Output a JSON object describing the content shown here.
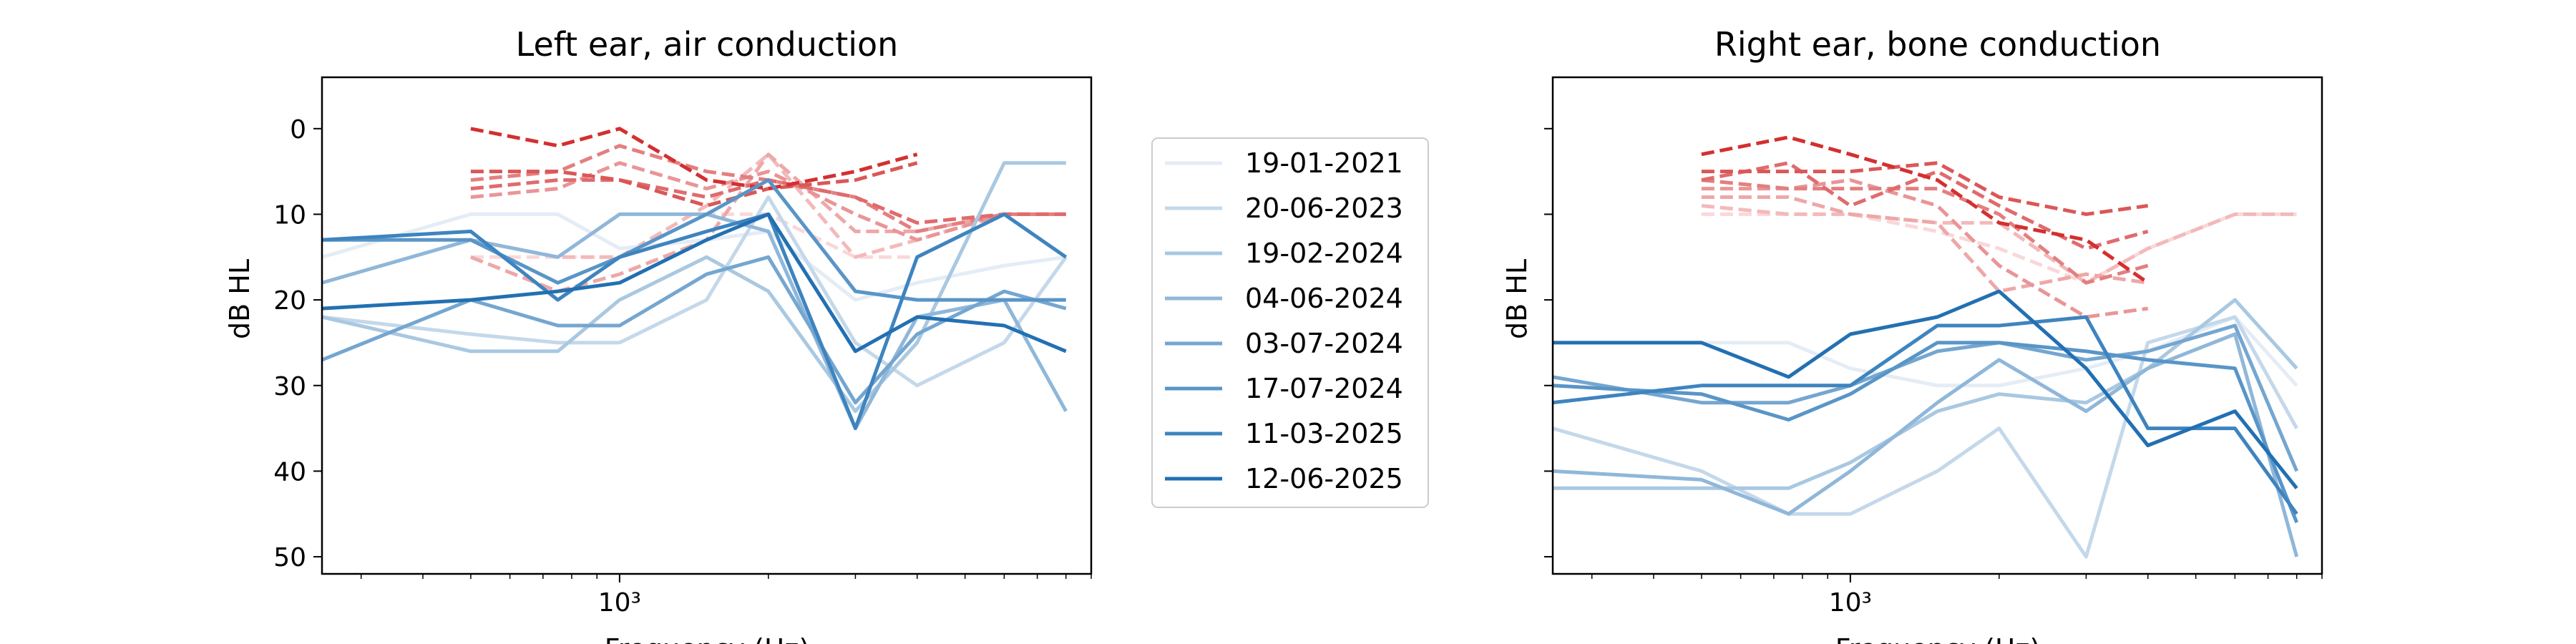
{
  "legend": {
    "placement": "center",
    "entries": [
      "19-01-2021",
      "20-06-2023",
      "19-02-2024",
      "04-06-2024",
      "03-07-2024",
      "17-07-2024",
      "11-03-2025",
      "12-06-2025"
    ]
  },
  "colors": {
    "blue_series": [
      "#e4ecf5",
      "#c4d8ea",
      "#a9c8e1",
      "#8fb7d9",
      "#74a6d0",
      "#5995c7",
      "#3e84bf",
      "#2270b2"
    ],
    "red_series": [
      "#f9d8d9",
      "#f3b9ba",
      "#eea7a8",
      "#e99596",
      "#e37f80",
      "#df6b6d",
      "#da5758",
      "#d42f30"
    ]
  },
  "chart_data": [
    {
      "type": "line",
      "title": "Left ear, air conduction",
      "xlabel": "Frequency (Hz)",
      "ylabel": "dB HL",
      "xscale": "log",
      "xlim": [
        250,
        9000
      ],
      "ylim": [
        52,
        -6
      ],
      "yticks": [
        0,
        10,
        20,
        30,
        40,
        50
      ],
      "xticks": [
        {
          "value": 1000,
          "label": "10³"
        }
      ],
      "grid": false,
      "series": [
        {
          "name": "19-01-2021",
          "x": [
            250,
            500,
            750,
            1000,
            1500,
            2000,
            3000,
            4000,
            6000,
            8000
          ],
          "values": [
            15,
            10,
            10,
            14,
            13,
            12,
            20,
            18,
            16,
            15
          ]
        },
        {
          "name": "20-06-2023",
          "x": [
            250,
            500,
            750,
            1000,
            1500,
            2000,
            3000,
            4000,
            6000,
            8000
          ],
          "values": [
            22,
            24,
            25,
            25,
            20,
            8,
            25,
            30,
            25,
            15
          ]
        },
        {
          "name": "19-02-2024",
          "x": [
            250,
            500,
            750,
            1000,
            1500,
            2000,
            3000,
            4000,
            6000,
            8000
          ],
          "values": [
            22,
            26,
            26,
            20,
            15,
            19,
            33,
            25,
            4,
            4
          ]
        },
        {
          "name": "04-06-2024",
          "x": [
            250,
            500,
            750,
            1000,
            1500,
            2000,
            3000,
            4000,
            6000,
            8000
          ],
          "values": [
            18,
            13,
            15,
            10,
            10,
            12,
            35,
            22,
            20,
            33
          ]
        },
        {
          "name": "03-07-2024",
          "x": [
            250,
            500,
            750,
            1000,
            1500,
            2000,
            3000,
            4000,
            6000,
            8000
          ],
          "values": [
            27,
            20,
            23,
            23,
            17,
            15,
            32,
            24,
            19,
            21
          ]
        },
        {
          "name": "17-07-2024",
          "x": [
            250,
            500,
            750,
            1000,
            1500,
            2000,
            3000,
            4000,
            6000,
            8000
          ],
          "values": [
            13,
            13,
            18,
            15,
            10,
            6,
            19,
            20,
            20,
            20
          ]
        },
        {
          "name": "11-03-2025",
          "x": [
            250,
            500,
            750,
            1000,
            1500,
            2000,
            3000,
            4000,
            6000,
            8000
          ],
          "values": [
            13,
            12,
            20,
            15,
            12,
            10,
            35,
            15,
            10,
            15
          ]
        },
        {
          "name": "12-06-2025",
          "x": [
            250,
            500,
            750,
            1000,
            1500,
            2000,
            3000,
            4000,
            6000,
            8000
          ],
          "values": [
            21,
            20,
            19,
            18,
            13,
            10,
            26,
            22,
            23,
            26
          ]
        }
      ],
      "dashed_series": [
        {
          "x": [
            500,
            750,
            1000,
            1500,
            2000,
            3000,
            4000,
            6000,
            8000
          ],
          "values": [
            15,
            15,
            15,
            10,
            10,
            15,
            15,
            10,
            10
          ]
        },
        {
          "x": [
            500,
            750,
            1000,
            1500,
            2000,
            3000,
            4000,
            6000,
            8000
          ],
          "values": [
            13,
            15,
            15,
            9,
            3,
            15,
            13,
            10,
            10
          ]
        },
        {
          "x": [
            500,
            750,
            1000,
            1500,
            2000,
            3000,
            4000,
            6000,
            8000
          ],
          "values": [
            15,
            19,
            17,
            13,
            3,
            12,
            12,
            10,
            10
          ]
        },
        {
          "x": [
            500,
            750,
            1000,
            1500,
            2000,
            3000,
            4000,
            6000,
            8000
          ],
          "values": [
            8,
            7,
            4,
            7,
            5,
            10,
            13,
            10,
            10
          ]
        },
        {
          "x": [
            500,
            750,
            1000,
            1500,
            2000,
            3000,
            4000,
            6000,
            8000
          ],
          "values": [
            6,
            5,
            2,
            5,
            6,
            8,
            12,
            10,
            10
          ]
        },
        {
          "x": [
            500,
            750,
            1000,
            1500,
            2000,
            3000,
            4000,
            6000,
            8000
          ],
          "values": [
            7,
            6,
            6,
            8,
            6,
            8,
            11,
            10,
            10
          ]
        },
        {
          "x": [
            500,
            750,
            1000,
            1500,
            2000,
            3000,
            4000
          ],
          "values": [
            5,
            5,
            6,
            9,
            7,
            6,
            4
          ]
        },
        {
          "x": [
            500,
            750,
            1000,
            1500,
            2000,
            3000,
            4000
          ],
          "values": [
            0,
            2,
            0,
            6,
            7,
            5,
            3
          ]
        }
      ]
    },
    {
      "type": "line",
      "title": "Right ear, bone conduction",
      "xlabel": "Frequency (Hz)",
      "ylabel": "dB HL",
      "xscale": "log",
      "xlim": [
        250,
        9000
      ],
      "ylim": [
        52,
        -6
      ],
      "yticks": [
        0,
        10,
        20,
        30,
        40,
        50
      ],
      "xticks": [
        {
          "value": 1000,
          "label": "10³"
        }
      ],
      "grid": false,
      "series": [
        {
          "name": "19-01-2021",
          "x": [
            250,
            500,
            750,
            1000,
            1500,
            2000,
            3000,
            4000,
            6000,
            8000
          ],
          "values": [
            25,
            25,
            25,
            28,
            30,
            30,
            28,
            26,
            22,
            30
          ]
        },
        {
          "name": "20-06-2023",
          "x": [
            250,
            500,
            750,
            1000,
            1500,
            2000,
            3000,
            4000,
            6000,
            8000
          ],
          "values": [
            35,
            40,
            45,
            45,
            40,
            35,
            50,
            25,
            22,
            35
          ]
        },
        {
          "name": "19-02-2024",
          "x": [
            250,
            500,
            750,
            1000,
            1500,
            2000,
            3000,
            4000,
            6000,
            8000
          ],
          "values": [
            42,
            42,
            42,
            39,
            33,
            31,
            32,
            28,
            20,
            28
          ]
        },
        {
          "name": "04-06-2024",
          "x": [
            250,
            500,
            750,
            1000,
            1500,
            2000,
            3000,
            4000,
            6000,
            8000
          ],
          "values": [
            40,
            41,
            45,
            40,
            32,
            27,
            33,
            28,
            24,
            50
          ]
        },
        {
          "name": "03-07-2024",
          "x": [
            250,
            500,
            750,
            1000,
            1500,
            2000,
            3000,
            4000,
            6000,
            8000
          ],
          "values": [
            29,
            32,
            32,
            30,
            26,
            25,
            27,
            26,
            23,
            40
          ]
        },
        {
          "name": "17-07-2024",
          "x": [
            250,
            500,
            750,
            1000,
            1500,
            2000,
            3000,
            4000,
            6000,
            8000
          ],
          "values": [
            30,
            31,
            34,
            31,
            25,
            25,
            26,
            27,
            28,
            46
          ]
        },
        {
          "name": "11-03-2025",
          "x": [
            250,
            500,
            750,
            1000,
            1500,
            2000,
            3000,
            4000,
            6000,
            8000
          ],
          "values": [
            32,
            30,
            30,
            30,
            23,
            23,
            22,
            35,
            35,
            45
          ]
        },
        {
          "name": "12-06-2025",
          "x": [
            250,
            500,
            750,
            1000,
            1500,
            2000,
            3000,
            4000,
            6000,
            8000
          ],
          "values": [
            25,
            25,
            29,
            24,
            22,
            19,
            28,
            37,
            33,
            42
          ]
        }
      ],
      "dashed_series": [
        {
          "x": [
            500,
            750,
            1000,
            1500,
            2000,
            3000,
            4000,
            6000,
            8000
          ],
          "values": [
            10,
            10,
            10,
            12,
            14,
            18,
            14,
            10,
            10
          ]
        },
        {
          "x": [
            500,
            750,
            1000,
            1500,
            2000,
            3000,
            4000,
            6000,
            8000
          ],
          "values": [
            9,
            10,
            10,
            11,
            11,
            18,
            14,
            10,
            10
          ]
        },
        {
          "x": [
            500,
            750,
            1000,
            1500,
            2000,
            3000,
            4000
          ],
          "values": [
            8,
            8,
            10,
            11,
            19,
            17,
            18
          ]
        },
        {
          "x": [
            500,
            750,
            1000,
            1500,
            2000,
            3000,
            4000
          ],
          "values": [
            7,
            7,
            6,
            9,
            16,
            22,
            21
          ]
        },
        {
          "x": [
            500,
            750,
            1000,
            1500,
            2000,
            3000,
            4000
          ],
          "values": [
            6,
            7,
            7,
            7,
            10,
            18,
            16
          ]
        },
        {
          "x": [
            500,
            750,
            1000,
            1500,
            2000,
            3000,
            4000
          ],
          "values": [
            6,
            4,
            9,
            5,
            9,
            14,
            12
          ]
        },
        {
          "x": [
            500,
            750,
            1000,
            1500,
            2000,
            3000,
            4000
          ],
          "values": [
            5,
            5,
            5,
            4,
            8,
            10,
            9
          ]
        },
        {
          "x": [
            500,
            750,
            1000,
            1500,
            2000,
            3000,
            4000
          ],
          "values": [
            3,
            1,
            3,
            6,
            11,
            13,
            18
          ]
        }
      ]
    }
  ]
}
